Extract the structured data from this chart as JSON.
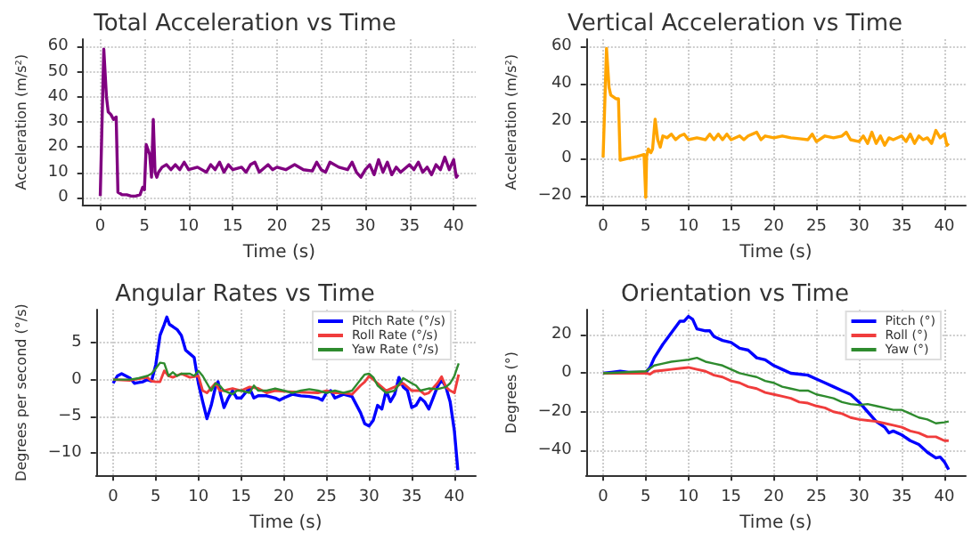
{
  "chart_data": [
    {
      "type": "line",
      "title": "Total Acceleration vs Time",
      "xlabel": "Time (s)",
      "ylabel": "Acceleration (m/s²)",
      "xlim": [
        -2,
        42.5
      ],
      "xticks": [
        0,
        5,
        10,
        15,
        20,
        25,
        30,
        35,
        40
      ],
      "ylim": [
        -3,
        63
      ],
      "yticks": [
        0,
        10,
        20,
        30,
        40,
        50,
        60
      ],
      "grid": true,
      "legend": false,
      "series": [
        {
          "color": "#800080",
          "x": [
            0,
            0.4,
            0.7,
            0.9,
            1.2,
            1.5,
            1.8,
            2.0,
            2.5,
            3,
            3.5,
            4,
            4.5,
            4.8,
            5.0,
            5.2,
            5.4,
            5.6,
            5.8,
            6.0,
            6.2,
            6.4,
            6.6,
            7,
            7.5,
            8,
            8.5,
            9,
            9.5,
            10,
            11,
            12,
            12.5,
            13,
            13.5,
            14,
            14.5,
            15,
            16,
            16.5,
            17,
            17.5,
            18,
            19,
            19.5,
            20,
            21,
            22,
            23,
            24,
            24.5,
            25,
            25.5,
            26,
            27,
            28,
            28.5,
            29,
            29.5,
            30,
            30.5,
            31,
            31.5,
            32,
            32.5,
            33,
            33.5,
            34,
            35,
            35.5,
            36,
            36.5,
            37,
            37.5,
            38,
            38.5,
            39,
            39.5,
            40,
            40.3,
            40.5
          ],
          "values": [
            0.5,
            59,
            40,
            34,
            33,
            31,
            32,
            2,
            1,
            1,
            0.5,
            0.5,
            1,
            4,
            3,
            21,
            19,
            17,
            8,
            31,
            10,
            8,
            10,
            12,
            13,
            11,
            13,
            11,
            14,
            11,
            12,
            10,
            13,
            11,
            14,
            10,
            13,
            11,
            12,
            10,
            13,
            14,
            10,
            13,
            11,
            12,
            11,
            13,
            11,
            10.5,
            14,
            11,
            10,
            14,
            12,
            11,
            14,
            10,
            8,
            11,
            13,
            9,
            15,
            10,
            14,
            9,
            12,
            10,
            13,
            11,
            14,
            10,
            12,
            9,
            13,
            11,
            16,
            11,
            15,
            8,
            9
          ]
        }
      ]
    },
    {
      "type": "line",
      "title": "Vertical Acceleration vs Time",
      "xlabel": "Time (s)",
      "ylabel": "Acceleration (m/s²)",
      "xlim": [
        -2,
        42.5
      ],
      "xticks": [
        0,
        5,
        10,
        15,
        20,
        25,
        30,
        35,
        40
      ],
      "ylim": [
        -25,
        64
      ],
      "yticks": [
        {
          "value": -20,
          "label": "−20"
        },
        0,
        20,
        40,
        60
      ],
      "grid": true,
      "legend": false,
      "series": [
        {
          "color": "#ffa500",
          "x": [
            0,
            0.4,
            0.7,
            0.9,
            1.2,
            1.5,
            1.8,
            2.0,
            3,
            4,
            4.8,
            5.0,
            5.1,
            5.3,
            5.6,
            5.8,
            6.1,
            6.4,
            6.7,
            7,
            7.5,
            8,
            8.5,
            9,
            9.5,
            10,
            11,
            12,
            12.5,
            13,
            13.5,
            14,
            14.5,
            15,
            16,
            16.5,
            17,
            18,
            18.5,
            19,
            20,
            21,
            22,
            23,
            24,
            24.5,
            25,
            26,
            27,
            28,
            28.5,
            29,
            30,
            30.5,
            31,
            31.5,
            32,
            32.5,
            33,
            33.5,
            34,
            35,
            35.5,
            36,
            36.5,
            37,
            37.5,
            38,
            38.5,
            39,
            39.5,
            40,
            40.3,
            40.5
          ],
          "values": [
            0.5,
            59,
            38,
            34,
            33,
            32,
            32,
            -1,
            0,
            1,
            2,
            -21,
            1,
            5,
            3,
            5,
            21,
            10,
            6,
            12,
            11,
            13,
            10,
            12,
            13,
            10,
            11,
            10,
            13,
            10,
            13,
            10,
            13,
            10,
            12,
            10,
            12,
            14,
            10,
            12,
            11,
            12,
            11,
            10.5,
            10,
            13,
            9,
            12,
            11,
            12,
            14,
            10,
            9,
            12,
            8,
            14,
            8,
            12,
            7,
            11,
            10,
            12,
            9,
            13,
            8,
            12,
            10,
            11,
            8,
            15,
            11,
            13,
            7,
            8
          ]
        }
      ]
    },
    {
      "type": "line",
      "title": "Angular Rates vs Time",
      "xlabel": "Time (s)",
      "ylabel": "Degrees per second (°/s)",
      "xlim": [
        -2,
        42.5
      ],
      "xticks": [
        0,
        5,
        10,
        15,
        20,
        25,
        30,
        35,
        40
      ],
      "ylim": [
        -13,
        9.5
      ],
      "yticks": [
        {
          "value": -10,
          "label": "−10"
        },
        {
          "value": -5,
          "label": "−5"
        },
        0,
        5
      ],
      "grid": true,
      "legend": "top right",
      "series": [
        {
          "name": "Pitch Rate (°/s)",
          "color": "#0000ff",
          "x": [
            0,
            0.5,
            1,
            2,
            2.5,
            3,
            3.5,
            4,
            4.5,
            5,
            5.5,
            6,
            6.3,
            6.6,
            7,
            7.5,
            8,
            8.5,
            9,
            9.5,
            10,
            10.5,
            11,
            11.5,
            12,
            12.3,
            12.6,
            13,
            13.5,
            14,
            14.5,
            15,
            15.5,
            16,
            16.5,
            17,
            18,
            19,
            19.5,
            20,
            21,
            22,
            23,
            24,
            24.5,
            25,
            25.5,
            26,
            27,
            28,
            29,
            29.5,
            30,
            30.5,
            31,
            31.5,
            32,
            32.5,
            33,
            33.5,
            34,
            34.5,
            35,
            35.5,
            36,
            36.5,
            37,
            37.5,
            38,
            38.5,
            39,
            39.5,
            40,
            40.4
          ],
          "values": [
            -0.5,
            0.5,
            0.8,
            0.2,
            -0.5,
            -0.4,
            -0.3,
            0,
            -0.2,
            2,
            6,
            7.5,
            8.5,
            7.5,
            7.2,
            6.8,
            6,
            4,
            3.5,
            3,
            -0.5,
            -3,
            -5.3,
            -3.5,
            -1,
            -0.3,
            -2,
            -3.8,
            -2.5,
            -1.5,
            -2.5,
            -2.5,
            -1.8,
            -1.2,
            -2.5,
            -2.2,
            -2.2,
            -2.5,
            -2.8,
            -2.5,
            -2,
            -2.2,
            -2.3,
            -2.5,
            -2.8,
            -1.8,
            -1.5,
            -2.5,
            -2,
            -2.3,
            -4.5,
            -6,
            -6.3,
            -5.5,
            -3.5,
            -4,
            -1.5,
            -3,
            -2,
            0.3,
            -1,
            -1.5,
            -3.8,
            -3.5,
            -2.5,
            -3,
            -4,
            -2.5,
            -1,
            0,
            -1,
            -3,
            -7,
            -12.3
          ]
        },
        {
          "name": "Roll Rate (°/s)",
          "color": "#f03c3c",
          "x": [
            0,
            2,
            4,
            4.5,
            5,
            5.5,
            6,
            6.5,
            7,
            8,
            9,
            10,
            10.5,
            11,
            12,
            12.5,
            13,
            14,
            15,
            16,
            17,
            18,
            19,
            20,
            22,
            24,
            25,
            26,
            27,
            28,
            29,
            29.5,
            30,
            31,
            32,
            33,
            34,
            35,
            36,
            36.5,
            37,
            38,
            38.5,
            39,
            39.5,
            40,
            40.5
          ],
          "values": [
            0,
            -0.1,
            0.3,
            -0.2,
            -0.3,
            -0.3,
            1.2,
            0.5,
            0.3,
            0.8,
            0.3,
            0.5,
            -1.5,
            -1.8,
            -0.5,
            -1.5,
            -1.5,
            -1.2,
            -1.5,
            -1,
            -1.2,
            -1.8,
            -1.5,
            -1.6,
            -1.7,
            -1.8,
            -1.5,
            -1.8,
            -1.8,
            -2,
            -0.8,
            -0.3,
            0.5,
            -0.5,
            -1.5,
            -1,
            -0.5,
            -1.5,
            -1.5,
            -2,
            -1.8,
            -0.5,
            0.4,
            -1,
            -1.5,
            -1.8,
            0.7
          ]
        },
        {
          "name": "Yaw Rate (°/s)",
          "color": "#2e8b2e",
          "x": [
            0,
            2,
            3,
            4,
            4.5,
            5,
            5.5,
            6,
            6.5,
            7,
            7.5,
            8,
            9,
            9.5,
            10,
            10.5,
            11,
            11.5,
            12,
            12.5,
            13,
            14,
            14.5,
            15,
            16,
            16.5,
            17,
            18,
            19,
            20,
            21,
            22,
            23,
            24,
            25,
            26,
            27,
            28,
            29,
            29.5,
            30,
            30.5,
            31,
            32,
            33,
            34,
            35,
            35.5,
            36,
            37,
            38,
            39,
            39.5,
            40,
            40.5
          ],
          "values": [
            0,
            0,
            0.2,
            0.5,
            0.8,
            1.5,
            2.3,
            2.2,
            0.5,
            1,
            0.5,
            0.8,
            0.8,
            0.5,
            1.2,
            0.5,
            -0.5,
            -1.5,
            -0.5,
            -0.8,
            -1.5,
            -2,
            -1.5,
            -1.5,
            -1.8,
            -0.8,
            -1.5,
            -1.5,
            -1.2,
            -1.5,
            -1.8,
            -1.5,
            -1.3,
            -1.5,
            -1.8,
            -1.5,
            -1.8,
            -1.5,
            0,
            0.7,
            0.8,
            0.3,
            -0.8,
            -1.8,
            -1.5,
            0.2,
            -0.5,
            -0.8,
            -1.5,
            -1.2,
            -1.3,
            -1,
            -0.5,
            0.5,
            2.2
          ]
        }
      ]
    },
    {
      "type": "line",
      "title": "Orientation vs Time",
      "xlabel": "Time (s)",
      "ylabel": "Degrees (°)",
      "xlim": [
        -2,
        42.5
      ],
      "xticks": [
        0,
        5,
        10,
        15,
        20,
        25,
        30,
        35,
        40
      ],
      "ylim": [
        -53,
        33
      ],
      "yticks": [
        {
          "value": -40,
          "label": "−40"
        },
        {
          "value": -20,
          "label": "−20"
        },
        0,
        20
      ],
      "grid": true,
      "legend": "top right",
      "series": [
        {
          "name": "Pitch (°)",
          "color": "#0000ff",
          "x": [
            0,
            1,
            2,
            3,
            4,
            5,
            5.5,
            6,
            7,
            8,
            9,
            9.5,
            10,
            10.5,
            11,
            12,
            12.5,
            13,
            14,
            15,
            16,
            17,
            18,
            19,
            20,
            21,
            22,
            23,
            24,
            25,
            26,
            27,
            28,
            29,
            30,
            31,
            32,
            33,
            33.5,
            34,
            35,
            36,
            37,
            38,
            39,
            39.5,
            40,
            40.5
          ],
          "values": [
            0,
            0.5,
            1,
            0.5,
            0.5,
            0.5,
            3,
            8,
            15,
            21,
            27,
            27,
            29.5,
            28,
            23,
            22,
            22,
            19,
            17,
            16,
            13,
            12,
            8,
            7,
            4,
            2,
            0,
            -0.5,
            -1,
            -3,
            -5,
            -7,
            -9,
            -11,
            -15,
            -20,
            -25,
            -28,
            -31,
            -30,
            -32,
            -35,
            -37,
            -41,
            -44,
            -43.5,
            -46,
            -50
          ]
        },
        {
          "name": "Roll (°)",
          "color": "#f03c3c",
          "x": [
            0,
            5,
            5.5,
            6,
            7,
            8,
            9,
            10,
            11,
            12,
            13,
            14,
            15,
            16,
            17,
            18,
            19,
            20,
            21,
            22,
            23,
            24,
            25,
            26,
            27,
            28,
            29,
            30,
            31,
            32,
            33,
            34,
            35,
            36,
            37,
            38,
            39,
            40,
            40.5
          ],
          "values": [
            0,
            0,
            -0.5,
            1,
            1.5,
            2,
            2.5,
            3,
            2,
            1,
            -1,
            -2,
            -4,
            -5,
            -7,
            -8,
            -10,
            -11,
            -12,
            -13,
            -15,
            -15.5,
            -17,
            -18,
            -20,
            -21,
            -23,
            -24,
            -24.5,
            -25,
            -26,
            -27,
            -28,
            -30,
            -31,
            -33,
            -33,
            -35,
            -35
          ]
        },
        {
          "name": "Yaw (°)",
          "color": "#2e8b2e",
          "x": [
            0,
            5,
            6,
            7,
            8,
            9,
            10,
            11,
            12,
            13,
            14,
            15,
            16,
            17,
            18,
            19,
            20,
            21,
            22,
            23,
            24,
            25,
            26,
            27,
            28,
            29,
            30,
            31,
            32,
            33,
            34,
            35,
            36,
            37,
            38,
            39,
            40,
            40.5
          ],
          "values": [
            0,
            1,
            4,
            5,
            6,
            6.5,
            7,
            8,
            6,
            5,
            4,
            2,
            0,
            -1,
            -2,
            -4,
            -5,
            -7,
            -8,
            -9,
            -9,
            -11,
            -12,
            -13,
            -15,
            -16,
            -16.5,
            -16,
            -17,
            -18,
            -19,
            -19,
            -21,
            -23,
            -24,
            -26,
            -25.5,
            -25
          ]
        }
      ]
    }
  ]
}
